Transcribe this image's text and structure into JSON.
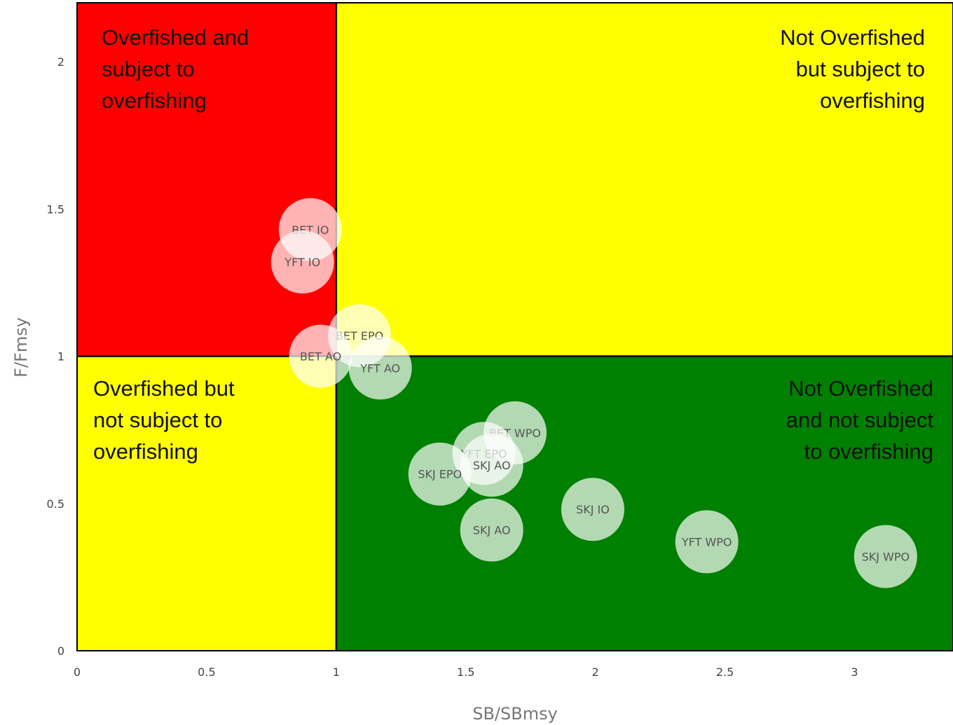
{
  "chart_data": {
    "type": "scatter",
    "xlabel": "SB/SBmsy",
    "ylabel": "F/Fmsy",
    "xlim": [
      0,
      3.38
    ],
    "ylim": [
      0,
      2.2
    ],
    "xticks": [
      "0",
      "0.5",
      "1",
      "1.5",
      "2",
      "2.5",
      "3"
    ],
    "yticks": [
      "0",
      "0.5",
      "1",
      "1.5",
      "2"
    ],
    "colors": {
      "overfished_overfishing": "#ff0000",
      "caution": "#ffff00",
      "healthy": "#008000",
      "marker": "#ffffff"
    },
    "quadrants": [
      {
        "name": "overfished-and-overfishing",
        "lines": [
          "Overfished and",
          "subject to",
          "overfishing"
        ],
        "color": "#ff0000"
      },
      {
        "name": "not-overfished-overfishing",
        "lines": [
          "Not Overfished",
          "but subject to",
          "overfishing"
        ],
        "color": "#ffff00"
      },
      {
        "name": "overfished-not-overfishing",
        "lines": [
          "Overfished but",
          "not subject to",
          "overfishing"
        ],
        "color": "#ffff00"
      },
      {
        "name": "not-overfished-not-overfishing",
        "lines": [
          "Not Overfished",
          "and not subject",
          "to overfishing"
        ],
        "color": "#008000"
      }
    ],
    "points": [
      {
        "label": "BET IO",
        "x": 0.9,
        "y": 1.43
      },
      {
        "label": "YFT IO",
        "x": 0.87,
        "y": 1.32
      },
      {
        "label": "BET EPO",
        "x": 1.09,
        "y": 1.07
      },
      {
        "label": "BET AO",
        "x": 0.94,
        "y": 1.0
      },
      {
        "label": "YFT AO",
        "x": 1.17,
        "y": 0.96
      },
      {
        "label": "BET WPO",
        "x": 1.69,
        "y": 0.74
      },
      {
        "label": "YFT EPO",
        "x": 1.57,
        "y": 0.67
      },
      {
        "label": "SKJ AO",
        "x": 1.6,
        "y": 0.63
      },
      {
        "label": "SKJ EPO",
        "x": 1.4,
        "y": 0.6
      },
      {
        "label": "SKJ IO",
        "x": 1.99,
        "y": 0.48
      },
      {
        "label": "SKJ AO",
        "x": 1.6,
        "y": 0.41
      },
      {
        "label": "YFT WPO",
        "x": 2.43,
        "y": 0.37
      },
      {
        "label": "SKJ WPO",
        "x": 3.12,
        "y": 0.32
      }
    ]
  }
}
